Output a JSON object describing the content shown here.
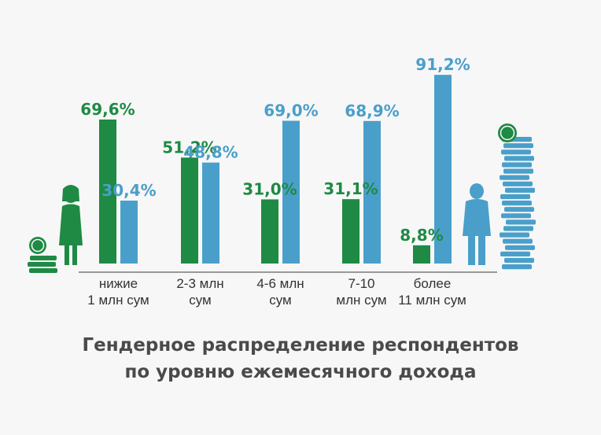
{
  "colors": {
    "female": "#1e8a44",
    "male": "#4a9fca",
    "axis": "#7a7a7a",
    "background": "#f7f7f7"
  },
  "icons": [
    "coin-stack-small-icon",
    "woman-icon",
    "man-icon",
    "coin-stack-tall-icon"
  ],
  "chart_data": {
    "type": "bar",
    "title": "Гендерное распределение респондентов по уровню ежемесячного дохода",
    "title_lines": [
      "Гендерное распределение респондентов",
      "по уровню ежемесячного дохода"
    ],
    "categories": [
      "нижие 1 млн сум",
      "2-3 млн сум",
      "4-6 млн сум",
      "7-10 млн сум",
      "более 11 млн сум"
    ],
    "category_lines": [
      [
        "нижие",
        "1 млн сум"
      ],
      [
        "2-3 млн",
        "сум"
      ],
      [
        "4-6 млн",
        "сум"
      ],
      [
        "7-10",
        "млн сум"
      ],
      [
        "более",
        "11 млн сум"
      ]
    ],
    "series": [
      {
        "color": "#1e8a44",
        "values": [
          69.6,
          51.2,
          31.0,
          31.1,
          8.8
        ],
        "labels": [
          "69,6%",
          "51,2%",
          "31,0%",
          "31,1%",
          "8,8%"
        ]
      },
      {
        "color": "#4a9fca",
        "values": [
          30.4,
          48.8,
          69.0,
          68.9,
          91.2
        ],
        "labels": [
          "30,4%",
          "48,8%",
          "69,0%",
          "68,9%",
          "91,2%"
        ]
      }
    ],
    "ylim": [
      0,
      100
    ],
    "grid": false,
    "legend": "none"
  }
}
